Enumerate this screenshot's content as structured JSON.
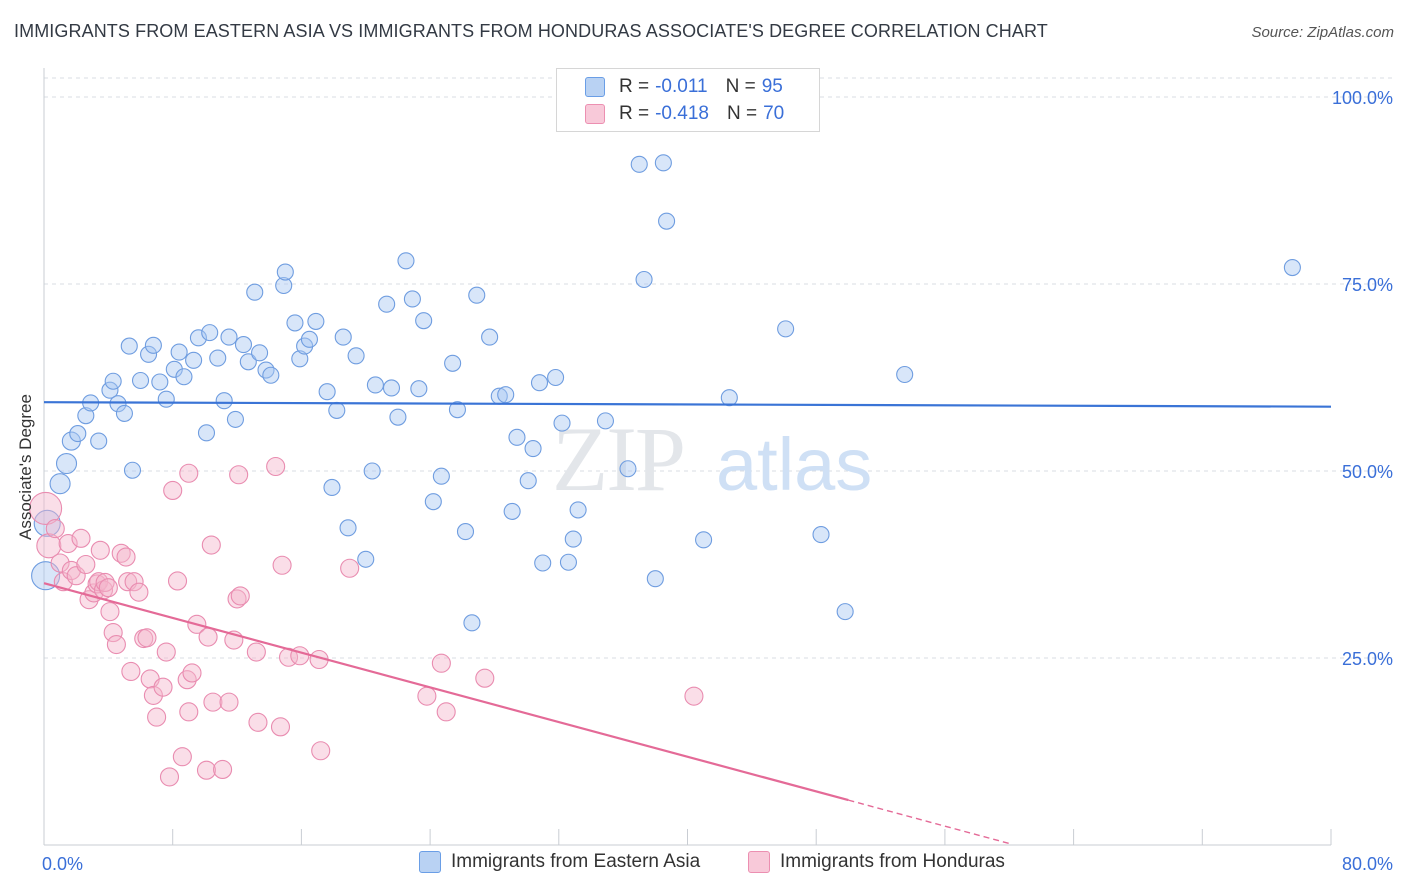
{
  "header": {
    "title": "IMMIGRANTS FROM EASTERN ASIA VS IMMIGRANTS FROM HONDURAS ASSOCIATE'S DEGREE CORRELATION CHART",
    "source": "Source: ZipAtlas.com"
  },
  "legend": {
    "r_label": "R =",
    "n_label": "N =",
    "rows": [
      {
        "r": "-0.011",
        "n": "95"
      },
      {
        "r": "-0.418",
        "n": "70"
      }
    ]
  },
  "watermark": {
    "zip": "ZIP",
    "atlas": "atlas"
  },
  "colors": {
    "blue": "#3a74d6",
    "blue_fill": "#a9c8f2",
    "pink": "#e46a97",
    "pink_fill": "#f5b6cc",
    "tick_label": "#3a6fd8",
    "grid": "#d9dde3"
  },
  "chart_data": {
    "type": "scatter",
    "title": "IMMIGRANTS FROM EASTERN ASIA VS IMMIGRANTS FROM HONDURAS ASSOCIATE'S DEGREE CORRELATION CHART",
    "xlabel": "",
    "ylabel": "Associate's Degree",
    "xlim": [
      0,
      80
    ],
    "ylim": [
      0,
      100
    ],
    "x_tick_labels": [
      "0.0%",
      "80.0%"
    ],
    "y_ticks": [
      25,
      50,
      75,
      100
    ],
    "y_tick_labels": [
      "25.0%",
      "50.0%",
      "75.0%",
      "100.0%"
    ],
    "grid": true,
    "legend_position": "top-center",
    "series": [
      {
        "name": "Immigrants from Eastern Asia",
        "r": -0.011,
        "n": 95,
        "trend": {
          "x": [
            0,
            80
          ],
          "y": [
            59.2,
            58.6
          ]
        },
        "points": [
          [
            0.1,
            36.0,
            14
          ],
          [
            0.2,
            43.0,
            13
          ],
          [
            1.0,
            48.3,
            10
          ],
          [
            1.4,
            51.0,
            10
          ],
          [
            1.7,
            54.0,
            9
          ],
          [
            2.1,
            55.0,
            8
          ],
          [
            2.6,
            57.4,
            8
          ],
          [
            2.9,
            59.1,
            8
          ],
          [
            3.4,
            54.0,
            8
          ],
          [
            4.1,
            60.8,
            8
          ],
          [
            4.3,
            62.0,
            8
          ],
          [
            4.6,
            59.0,
            8
          ],
          [
            5.0,
            57.7,
            8
          ],
          [
            5.5,
            50.1,
            8
          ],
          [
            5.3,
            66.7,
            8
          ],
          [
            6.0,
            62.1,
            8
          ],
          [
            6.5,
            65.6,
            8
          ],
          [
            6.8,
            66.8,
            8
          ],
          [
            7.2,
            61.9,
            8
          ],
          [
            7.6,
            59.6,
            8
          ],
          [
            8.1,
            63.6,
            8
          ],
          [
            8.4,
            65.9,
            8
          ],
          [
            8.7,
            62.6,
            8
          ],
          [
            9.3,
            64.8,
            8
          ],
          [
            9.6,
            67.8,
            8
          ],
          [
            10.3,
            68.5,
            8
          ],
          [
            10.1,
            55.1,
            8
          ],
          [
            10.8,
            65.1,
            8
          ],
          [
            11.2,
            59.4,
            8
          ],
          [
            11.5,
            67.9,
            8
          ],
          [
            11.9,
            56.9,
            8
          ],
          [
            12.4,
            66.9,
            8
          ],
          [
            12.7,
            64.6,
            8
          ],
          [
            13.1,
            73.9,
            8
          ],
          [
            13.4,
            65.8,
            8
          ],
          [
            13.8,
            63.5,
            8
          ],
          [
            14.1,
            62.8,
            8
          ],
          [
            14.9,
            74.8,
            8
          ],
          [
            15.0,
            76.6,
            8
          ],
          [
            15.6,
            69.8,
            8
          ],
          [
            15.9,
            65.0,
            8
          ],
          [
            16.2,
            66.7,
            8
          ],
          [
            16.5,
            67.6,
            8
          ],
          [
            16.9,
            70.0,
            8
          ],
          [
            17.6,
            60.6,
            8
          ],
          [
            17.9,
            47.8,
            8
          ],
          [
            18.2,
            58.1,
            8
          ],
          [
            18.6,
            67.9,
            8
          ],
          [
            18.9,
            42.4,
            8
          ],
          [
            19.4,
            65.4,
            8
          ],
          [
            20.0,
            38.2,
            8
          ],
          [
            20.4,
            50.0,
            8
          ],
          [
            20.6,
            61.5,
            8
          ],
          [
            21.3,
            72.3,
            8
          ],
          [
            21.6,
            61.1,
            8
          ],
          [
            22.0,
            57.2,
            8
          ],
          [
            22.5,
            78.1,
            8
          ],
          [
            22.9,
            73.0,
            8
          ],
          [
            23.3,
            61.0,
            8
          ],
          [
            23.6,
            70.1,
            8
          ],
          [
            24.2,
            45.9,
            8
          ],
          [
            24.7,
            49.3,
            8
          ],
          [
            25.4,
            64.4,
            8
          ],
          [
            25.7,
            58.2,
            8
          ],
          [
            26.2,
            41.9,
            8
          ],
          [
            26.6,
            29.7,
            8
          ],
          [
            26.9,
            73.5,
            8
          ],
          [
            27.7,
            67.9,
            8
          ],
          [
            28.3,
            60.0,
            8
          ],
          [
            28.7,
            60.2,
            8
          ],
          [
            29.1,
            44.6,
            8
          ],
          [
            29.4,
            54.5,
            8
          ],
          [
            30.1,
            48.7,
            8
          ],
          [
            30.4,
            53.0,
            8
          ],
          [
            30.8,
            61.8,
            8
          ],
          [
            31.0,
            37.7,
            8
          ],
          [
            31.8,
            62.5,
            8
          ],
          [
            32.2,
            56.4,
            8
          ],
          [
            32.6,
            37.8,
            8
          ],
          [
            32.9,
            40.9,
            8
          ],
          [
            33.2,
            44.8,
            8
          ],
          [
            34.9,
            56.7,
            8
          ],
          [
            36.3,
            50.3,
            8
          ],
          [
            37.0,
            91.0,
            8
          ],
          [
            37.3,
            75.6,
            8
          ],
          [
            38.0,
            35.6,
            8
          ],
          [
            38.5,
            91.2,
            8
          ],
          [
            38.7,
            83.4,
            8
          ],
          [
            41.0,
            40.8,
            8
          ],
          [
            42.6,
            59.8,
            8
          ],
          [
            46.1,
            69.0,
            8
          ],
          [
            48.3,
            41.5,
            8
          ],
          [
            49.8,
            31.2,
            8
          ],
          [
            53.5,
            62.9,
            8
          ],
          [
            77.6,
            77.2,
            8
          ]
        ]
      },
      {
        "name": "Immigrants from Honduras",
        "r": -0.418,
        "n": 70,
        "trend": {
          "x": [
            0,
            50
          ],
          "y": [
            35.0,
            6.0
          ]
        },
        "trend_dashed": {
          "x": [
            50,
            60
          ],
          "y": [
            6.0,
            0.2
          ]
        },
        "points": [
          [
            0.1,
            45.0,
            16
          ],
          [
            0.3,
            40.0,
            12
          ],
          [
            0.7,
            42.3,
            9
          ],
          [
            1.0,
            37.7,
            9
          ],
          [
            1.2,
            35.2,
            9
          ],
          [
            1.5,
            40.3,
            9
          ],
          [
            1.7,
            36.7,
            9
          ],
          [
            2.0,
            36.0,
            9
          ],
          [
            2.3,
            41.0,
            9
          ],
          [
            2.6,
            37.5,
            9
          ],
          [
            2.8,
            32.8,
            9
          ],
          [
            3.1,
            33.7,
            9
          ],
          [
            3.3,
            34.9,
            9
          ],
          [
            3.4,
            35.2,
            9
          ],
          [
            3.5,
            39.4,
            9
          ],
          [
            3.7,
            34.1,
            9
          ],
          [
            3.8,
            35.1,
            9
          ],
          [
            4.0,
            34.4,
            9
          ],
          [
            4.1,
            31.2,
            9
          ],
          [
            4.3,
            28.4,
            9
          ],
          [
            4.5,
            26.8,
            9
          ],
          [
            4.8,
            39.0,
            9
          ],
          [
            5.1,
            38.5,
            9
          ],
          [
            5.2,
            35.2,
            9
          ],
          [
            5.4,
            23.2,
            9
          ],
          [
            5.6,
            35.2,
            9
          ],
          [
            5.9,
            33.8,
            9
          ],
          [
            6.2,
            27.6,
            9
          ],
          [
            6.4,
            27.7,
            9
          ],
          [
            6.6,
            22.2,
            9
          ],
          [
            6.8,
            20.0,
            9
          ],
          [
            7.0,
            17.1,
            9
          ],
          [
            7.4,
            21.1,
            9
          ],
          [
            7.6,
            25.8,
            9
          ],
          [
            7.8,
            9.1,
            9
          ],
          [
            8.0,
            47.4,
            9
          ],
          [
            8.3,
            35.3,
            9
          ],
          [
            8.6,
            11.8,
            9
          ],
          [
            8.9,
            22.1,
            9
          ],
          [
            9.0,
            17.8,
            9
          ],
          [
            9.2,
            23.0,
            9
          ],
          [
            9.5,
            29.5,
            9
          ],
          [
            10.1,
            10.0,
            9
          ],
          [
            10.2,
            27.8,
            9
          ],
          [
            10.4,
            40.1,
            9
          ],
          [
            10.5,
            19.1,
            9
          ],
          [
            11.1,
            10.1,
            9
          ],
          [
            11.5,
            19.1,
            9
          ],
          [
            11.8,
            27.4,
            9
          ],
          [
            12.0,
            32.9,
            9
          ],
          [
            12.1,
            49.5,
            9
          ],
          [
            9.0,
            49.7,
            9
          ],
          [
            12.2,
            33.3,
            9
          ],
          [
            13.2,
            25.8,
            9
          ],
          [
            13.3,
            16.4,
            9
          ],
          [
            14.4,
            50.6,
            9
          ],
          [
            14.7,
            15.8,
            9
          ],
          [
            14.8,
            37.4,
            9
          ],
          [
            15.2,
            25.1,
            9
          ],
          [
            15.9,
            25.3,
            9
          ],
          [
            17.1,
            24.8,
            9
          ],
          [
            17.2,
            12.6,
            9
          ],
          [
            19.0,
            37.0,
            9
          ],
          [
            23.8,
            19.9,
            9
          ],
          [
            24.7,
            24.3,
            9
          ],
          [
            25.0,
            17.8,
            9
          ],
          [
            27.4,
            22.3,
            9
          ],
          [
            40.4,
            19.9,
            9
          ],
          [
            19.1,
            31.4,
            0
          ],
          [
            6.1,
            31.1,
            0
          ]
        ]
      }
    ]
  },
  "bottom_legend": [
    {
      "label": "Immigrants from Eastern Asia"
    },
    {
      "label": "Immigrants from Honduras"
    }
  ]
}
